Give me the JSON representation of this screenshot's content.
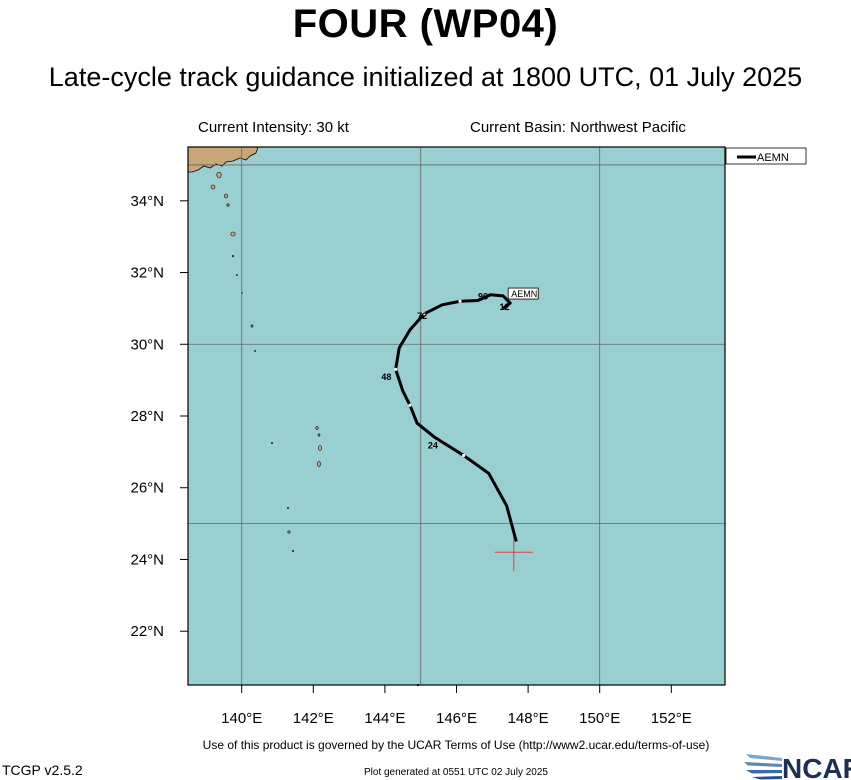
{
  "header": {
    "title": "FOUR (WP04)",
    "subtitle": "Late-cycle track guidance initialized at 1800 UTC, 01 July 2025"
  },
  "info": {
    "current_intensity": "Current Intensity: 30 kt",
    "current_basin": "Current Basin: Northwest Pacific"
  },
  "map": {
    "lon_labels": [
      "140°E",
      "142°E",
      "144°E",
      "146°E",
      "148°E",
      "150°E",
      "152°E"
    ],
    "lat_labels": [
      "34°N",
      "32°N",
      "30°N",
      "28°N",
      "26°N",
      "24°N",
      "22°N"
    ],
    "lon_range": [
      138.5,
      153.5
    ],
    "lat_range": [
      20.5,
      35.5
    ],
    "ocean_color": "#99cfd0",
    "land_color": "#c8a878",
    "grid_color": "#666666"
  },
  "legend": {
    "entries": [
      {
        "label": "AEMN",
        "color": "#000000"
      }
    ]
  },
  "track": {
    "model": "AEMN",
    "points": [
      [
        147.67,
        24.5
      ],
      [
        147.4,
        25.5
      ],
      [
        146.9,
        26.4
      ],
      [
        146.2,
        26.9
      ],
      [
        145.4,
        27.4
      ],
      [
        144.9,
        27.8
      ],
      [
        144.7,
        28.3
      ],
      [
        144.5,
        28.7
      ],
      [
        144.3,
        29.3
      ],
      [
        144.4,
        29.9
      ],
      [
        144.7,
        30.4
      ],
      [
        145.1,
        30.85
      ],
      [
        145.6,
        31.1
      ],
      [
        146.1,
        31.2
      ],
      [
        146.6,
        31.22
      ],
      [
        146.95,
        31.38
      ],
      [
        147.3,
        31.35
      ],
      [
        147.5,
        31.15
      ],
      [
        147.3,
        31.0
      ]
    ],
    "hour_labels": [
      {
        "text": "12",
        "lon": 147.2,
        "lat": 30.95
      },
      {
        "text": "24",
        "lon": 145.2,
        "lat": 27.1
      },
      {
        "text": "48",
        "lon": 143.9,
        "lat": 29.0
      },
      {
        "text": "72",
        "lon": 144.9,
        "lat": 30.7
      },
      {
        "text": "96",
        "lon": 146.6,
        "lat": 31.25
      }
    ],
    "end_label": {
      "text": "AEMN",
      "lon": 147.5,
      "lat": 31.4
    }
  },
  "current_position": {
    "lon": 147.6,
    "lat": 24.2,
    "color": "#e04040"
  },
  "footer": {
    "terms": "Use of this product is governed by the UCAR Terms of Use (http://www2.ucar.edu/terms-of-use)",
    "version": "TCGP v2.5.2",
    "generated": "Plot generated at 0551 UTC   02 July 2025",
    "logo_text": "NCAR"
  }
}
